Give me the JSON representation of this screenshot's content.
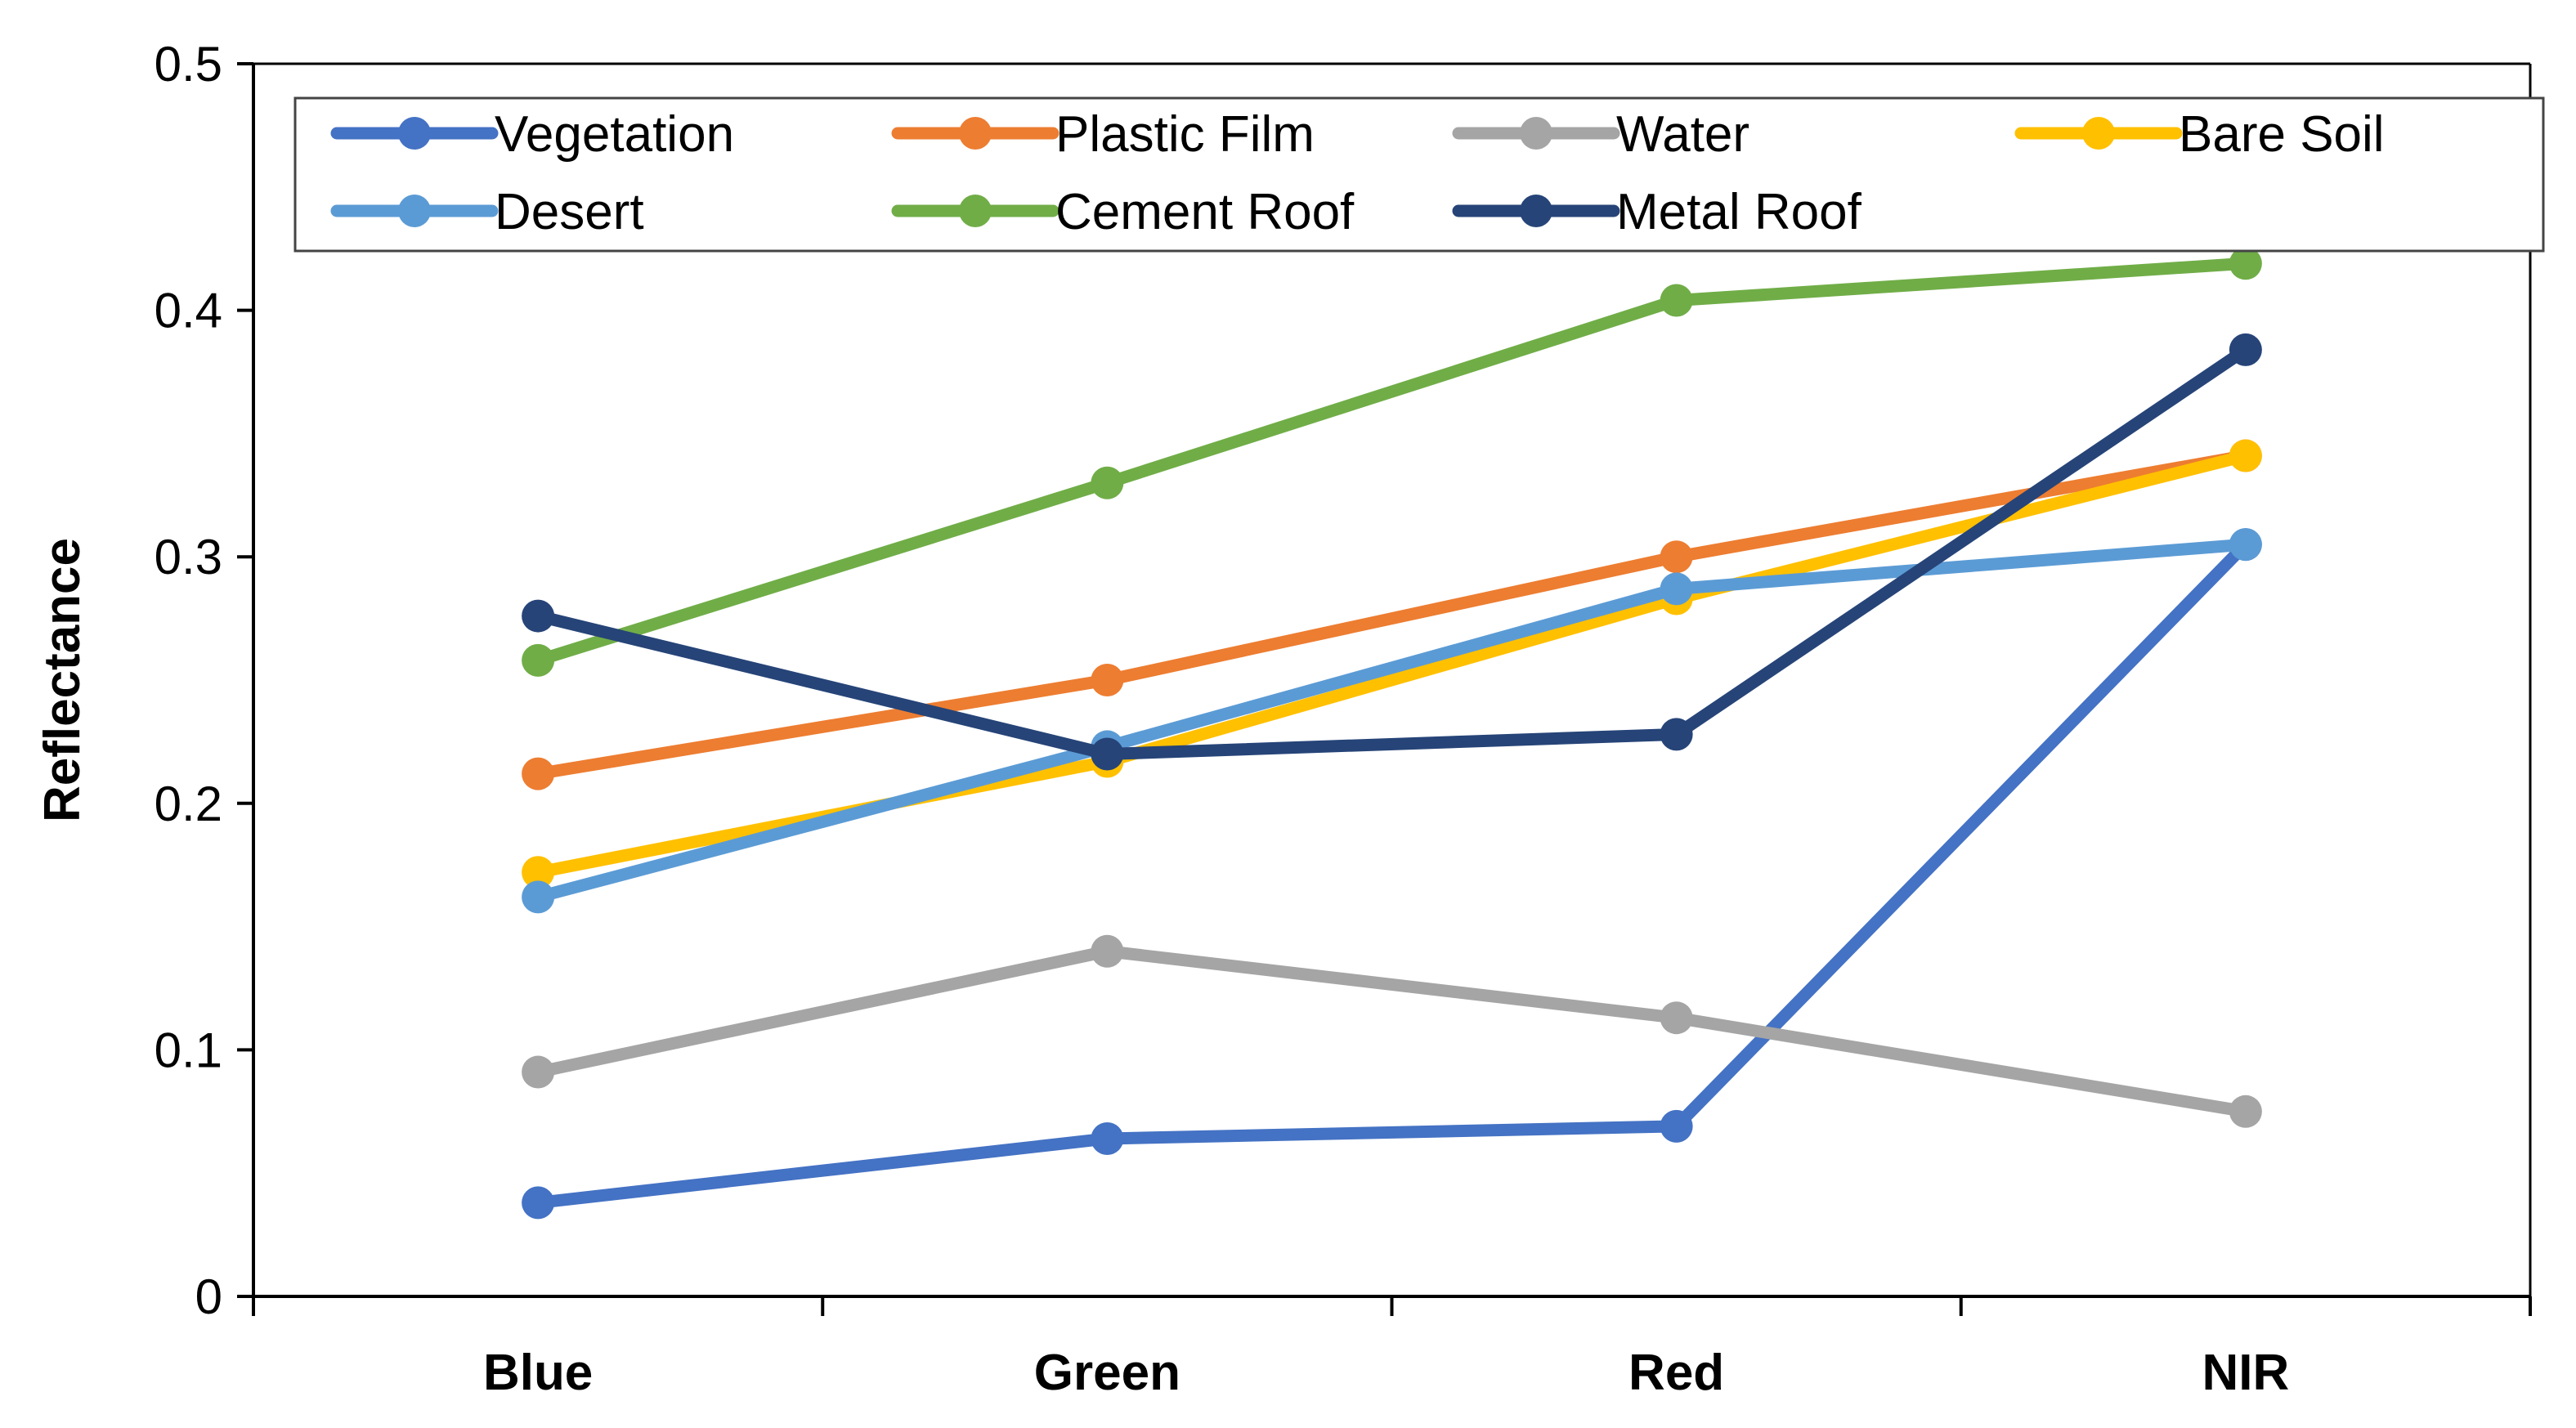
{
  "chart_data": {
    "type": "line",
    "title": "",
    "xlabel": "",
    "ylabel": "Reflectance",
    "categories": [
      "Blue",
      "Green",
      "Red",
      "NIR"
    ],
    "ylim": [
      0,
      0.5
    ],
    "yticks": [
      0,
      0.1,
      0.2,
      0.3,
      0.4,
      0.5
    ],
    "ytick_labels": [
      "0",
      "0.1",
      "0.2",
      "0.3",
      "0.4",
      "0.5"
    ],
    "grid": false,
    "legend_position": "top",
    "series": [
      {
        "name": "Vegetation",
        "color": "#4472C4",
        "values": [
          0.038,
          0.064,
          0.069,
          0.305
        ]
      },
      {
        "name": "Plastic Film",
        "color": "#ED7D31",
        "values": [
          0.212,
          0.25,
          0.3,
          0.341
        ]
      },
      {
        "name": "Water",
        "color": "#A5A5A5",
        "values": [
          0.091,
          0.14,
          0.113,
          0.075
        ]
      },
      {
        "name": "Bare Soil",
        "color": "#FFC000",
        "values": [
          0.172,
          0.217,
          0.283,
          0.341
        ]
      },
      {
        "name": "Desert",
        "color": "#5B9BD5",
        "values": [
          0.162,
          0.223,
          0.287,
          0.305
        ]
      },
      {
        "name": "Cement Roof",
        "color": "#70AD47",
        "values": [
          0.258,
          0.33,
          0.404,
          0.419
        ]
      },
      {
        "name": "Metal Roof",
        "color": "#264478",
        "values": [
          0.276,
          0.22,
          0.228,
          0.384
        ]
      }
    ]
  }
}
